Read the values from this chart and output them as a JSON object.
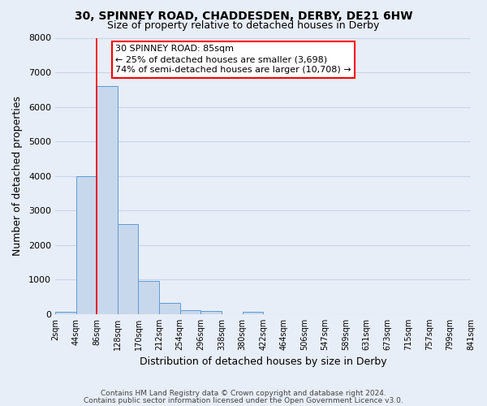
{
  "title1": "30, SPINNEY ROAD, CHADDESDEN, DERBY, DE21 6HW",
  "title2": "Size of property relative to detached houses in Derby",
  "xlabel": "Distribution of detached houses by size in Derby",
  "ylabel": "Number of detached properties",
  "bar_values": [
    55,
    4000,
    6600,
    2600,
    950,
    330,
    120,
    80,
    0,
    65,
    0,
    0,
    0,
    0,
    0,
    0,
    0,
    0,
    0,
    0
  ],
  "bin_edges": [
    2,
    44,
    86,
    128,
    170,
    212,
    254,
    296,
    338,
    380,
    422,
    464,
    506,
    547,
    589,
    631,
    673,
    715,
    757,
    799,
    841
  ],
  "tick_labels": [
    "2sqm",
    "44sqm",
    "86sqm",
    "128sqm",
    "170sqm",
    "212sqm",
    "254sqm",
    "296sqm",
    "338sqm",
    "380sqm",
    "422sqm",
    "464sqm",
    "506sqm",
    "547sqm",
    "589sqm",
    "631sqm",
    "673sqm",
    "715sqm",
    "757sqm",
    "799sqm",
    "841sqm"
  ],
  "bar_color": "#c8d8ec",
  "bar_edge_color": "#5b9bd5",
  "property_line_x": 86,
  "ylim": [
    0,
    8000
  ],
  "yticks": [
    0,
    1000,
    2000,
    3000,
    4000,
    5000,
    6000,
    7000,
    8000
  ],
  "ann_line1": "30 SPINNEY ROAD: 85sqm",
  "ann_line2": "← 25% of detached houses are smaller (3,698)",
  "ann_line3": "74% of semi-detached houses are larger (10,708) →",
  "footnote1": "Contains HM Land Registry data © Crown copyright and database right 2024.",
  "footnote2": "Contains public sector information licensed under the Open Government Licence v3.0.",
  "grid_color": "#c8d4e8",
  "background_color": "#e8eef8",
  "plot_bg_color": "#e8eef8"
}
